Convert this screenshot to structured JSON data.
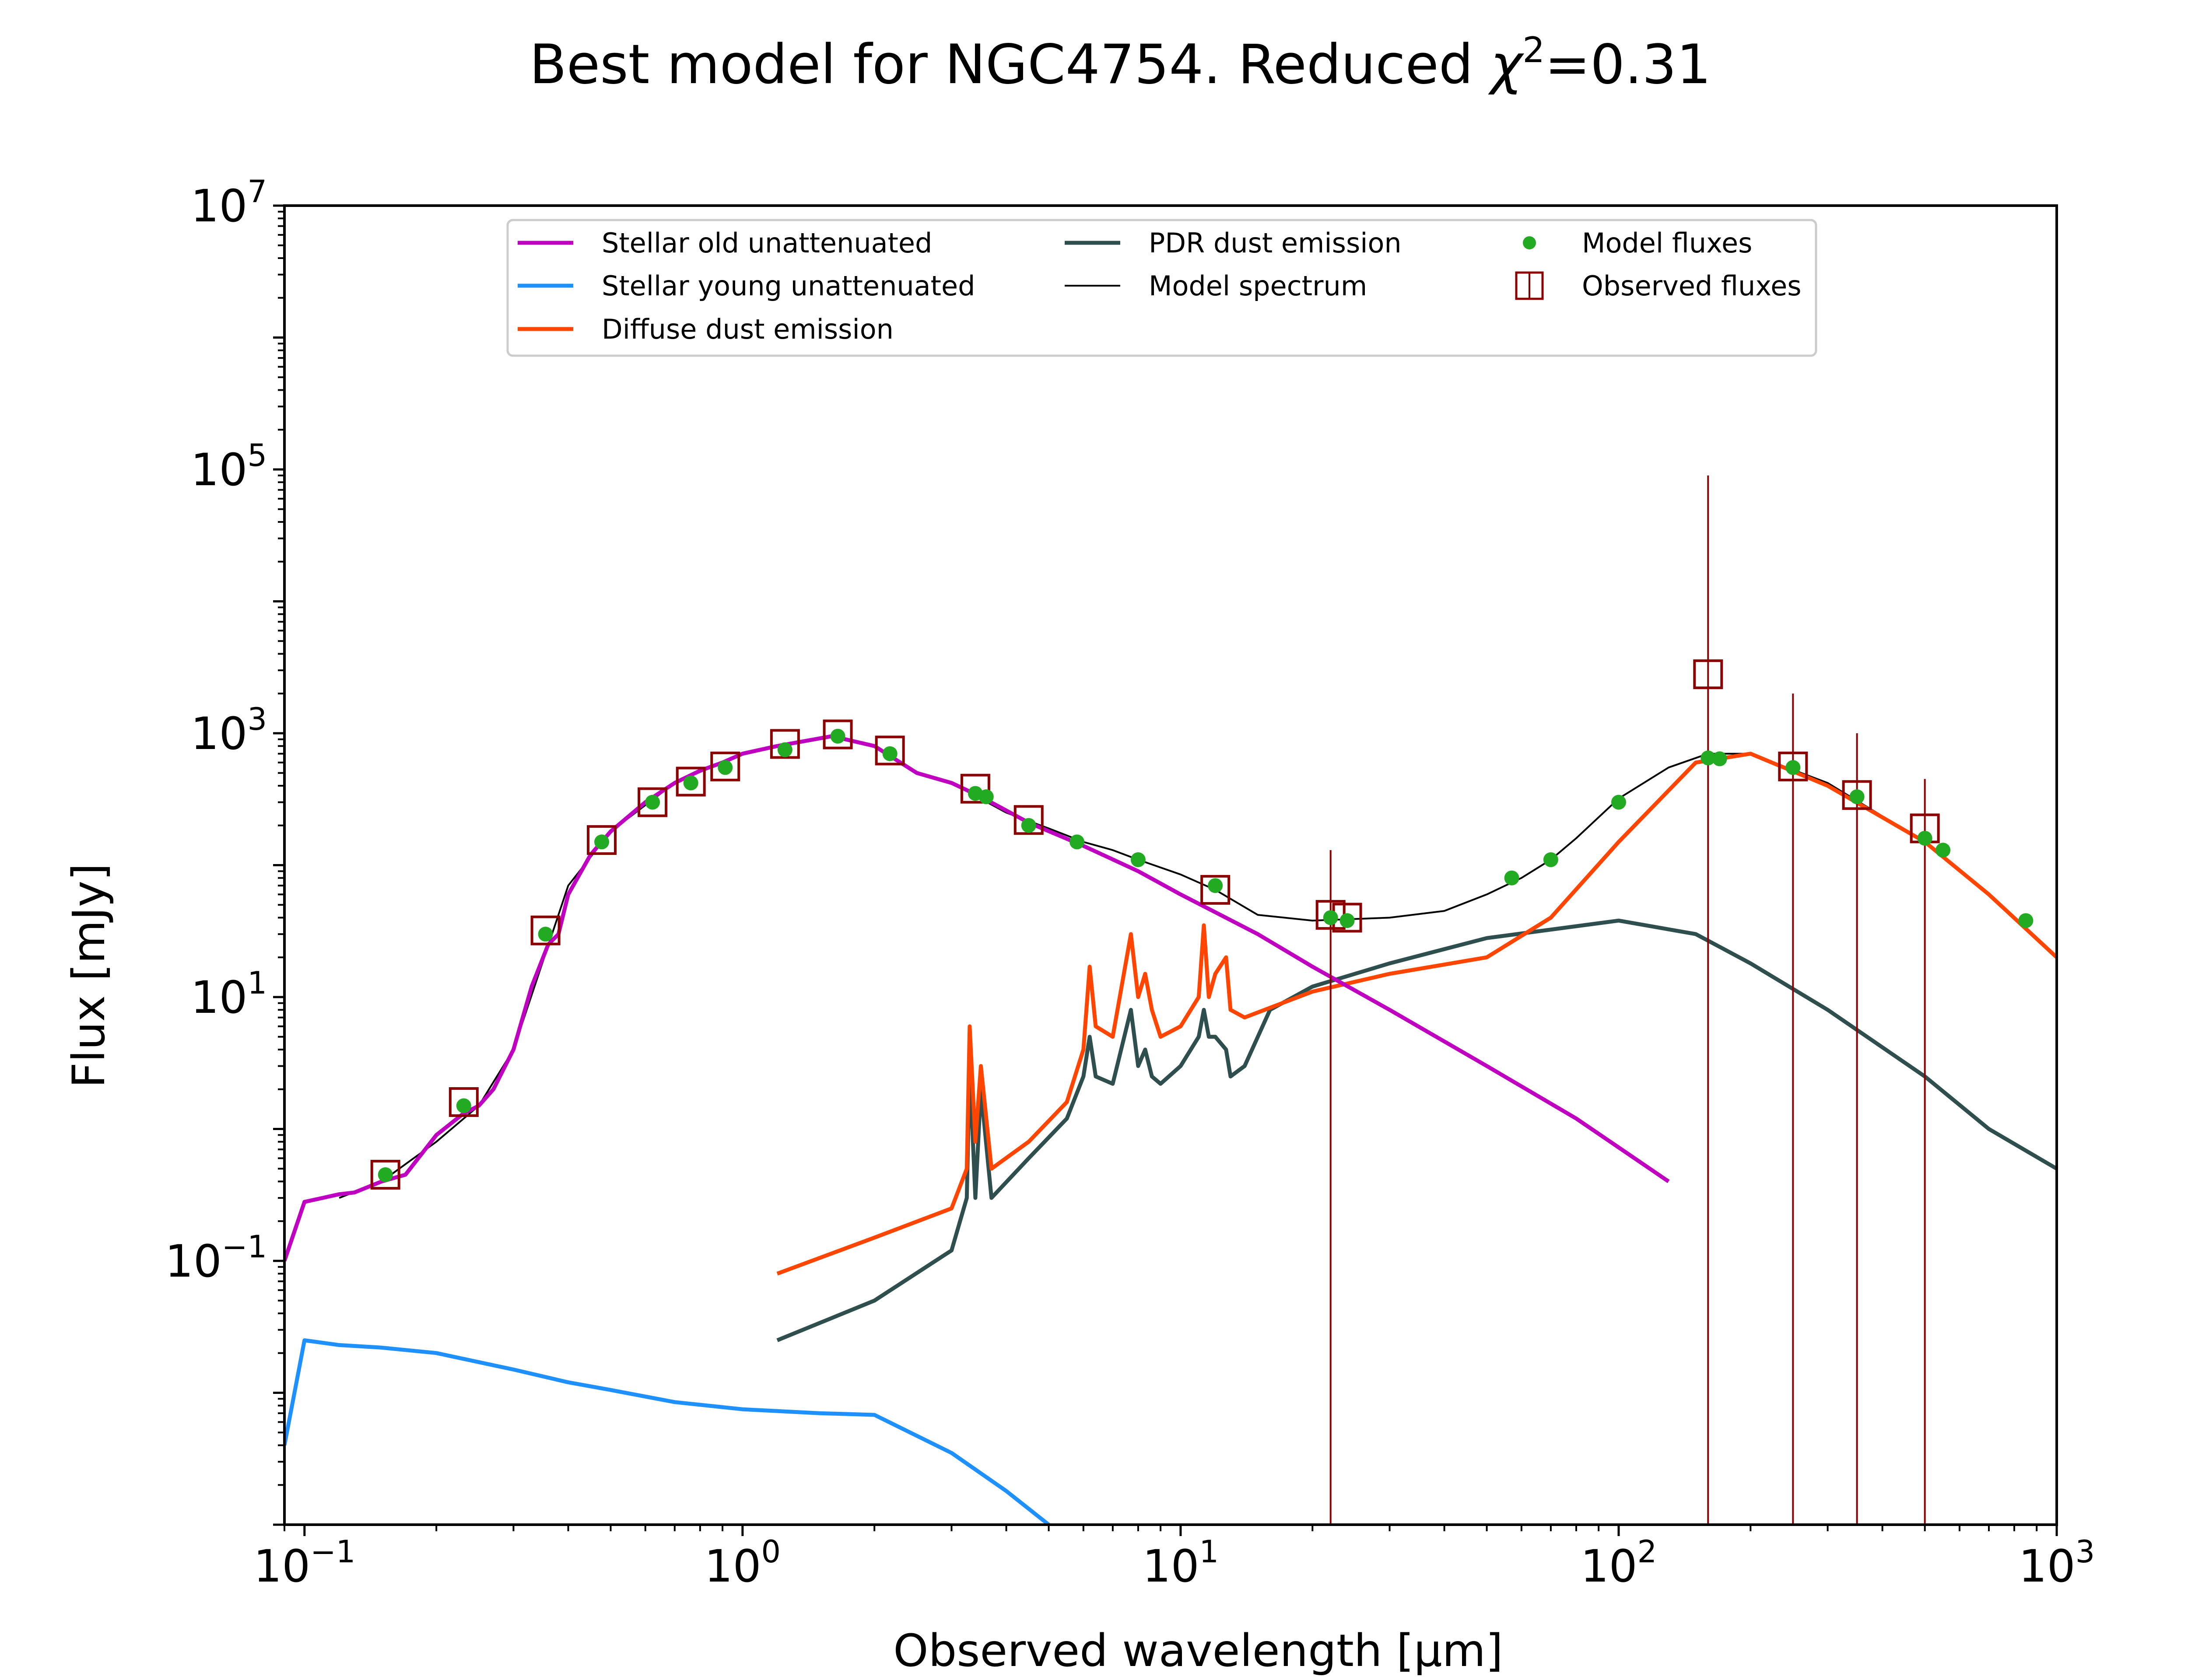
{
  "chart_data": {
    "type": "line",
    "title": "Best model for NGC4754. Reduced χ²=0.31",
    "title_parts": {
      "prefix": "Best model for NGC4754. Reduced ",
      "chi": "χ",
      "sup": "2",
      "suffix": "=0.31"
    },
    "xlabel": "Observed wavelength [μm]",
    "ylabel": "Flux [mJy]",
    "xscale": "log",
    "yscale": "log",
    "xlim": [
      0.09,
      1000
    ],
    "ylim": [
      0.001,
      10000000
    ],
    "xticks": [
      {
        "value": 0.1,
        "base": "10",
        "exp": "−1"
      },
      {
        "value": 1,
        "base": "10",
        "exp": "0"
      },
      {
        "value": 10,
        "base": "10",
        "exp": "1"
      },
      {
        "value": 100,
        "base": "10",
        "exp": "2"
      },
      {
        "value": 1000,
        "base": "10",
        "exp": "3"
      }
    ],
    "yticks": [
      {
        "value": 0.1,
        "base": "10",
        "exp": "−1"
      },
      {
        "value": 10,
        "base": "10",
        "exp": "1"
      },
      {
        "value": 1000,
        "base": "10",
        "exp": "3"
      },
      {
        "value": 100000,
        "base": "10",
        "exp": "5"
      },
      {
        "value": 10000000,
        "base": "10",
        "exp": "7"
      }
    ],
    "legend": {
      "placement": "top-center",
      "entries": [
        {
          "label": "Stellar old unattenuated",
          "kind": "line",
          "color": "#c000c0"
        },
        {
          "label": "Stellar young unattenuated",
          "kind": "line",
          "color": "#1e90ff"
        },
        {
          "label": "Diffuse dust emission",
          "kind": "line",
          "color": "#ff4500"
        },
        {
          "label": "PDR dust emission",
          "kind": "line",
          "color": "#2f4f4f"
        },
        {
          "label": "Model spectrum",
          "kind": "thin-line",
          "color": "#000000"
        },
        {
          "label": "Model fluxes",
          "kind": "dot",
          "color": "#22aa22"
        },
        {
          "label": "Observed fluxes",
          "kind": "square",
          "color": "#8b0000"
        }
      ]
    },
    "series": [
      {
        "name": "Stellar old unattenuated",
        "color": "#c000c0",
        "x": [
          0.09,
          0.1,
          0.11,
          0.12,
          0.13,
          0.15,
          0.17,
          0.2,
          0.23,
          0.25,
          0.27,
          0.3,
          0.33,
          0.36,
          0.38,
          0.4,
          0.45,
          0.5,
          0.6,
          0.7,
          0.8,
          0.9,
          1.0,
          1.2,
          1.6,
          2.0,
          2.5,
          3.0,
          3.5,
          4.5,
          6,
          8,
          10,
          15,
          20,
          30,
          50,
          80,
          130
        ],
        "y": [
          0.1,
          0.28,
          0.3,
          0.32,
          0.33,
          0.4,
          0.45,
          0.9,
          1.3,
          1.5,
          2,
          4,
          12,
          25,
          30,
          60,
          120,
          180,
          300,
          420,
          520,
          600,
          700,
          800,
          950,
          800,
          500,
          420,
          330,
          210,
          140,
          90,
          60,
          30,
          17,
          8,
          3,
          1.2,
          0.4
        ]
      },
      {
        "name": "Stellar young unattenuated",
        "color": "#1e90ff",
        "x": [
          0.09,
          0.1,
          0.12,
          0.15,
          0.2,
          0.3,
          0.4,
          0.5,
          0.7,
          1.0,
          1.5,
          2.0,
          3.0,
          4.0,
          5.0
        ],
        "y": [
          0.004,
          0.025,
          0.023,
          0.022,
          0.02,
          0.015,
          0.012,
          0.0105,
          0.0085,
          0.0075,
          0.007,
          0.0068,
          0.0035,
          0.0018,
          0.001
        ]
      },
      {
        "name": "Diffuse dust emission",
        "color": "#ff4500",
        "x": [
          1.2,
          2,
          3.0,
          3.25,
          3.3,
          3.4,
          3.5,
          3.7,
          4.5,
          5.5,
          6.0,
          6.2,
          6.4,
          7.0,
          7.7,
          8.0,
          8.3,
          8.6,
          9.0,
          10,
          11.0,
          11.3,
          11.6,
          12.0,
          12.7,
          13.0,
          14,
          20,
          30,
          50,
          70,
          100,
          150,
          200,
          300,
          500,
          700,
          1000
        ],
        "y": [
          0.08,
          0.15,
          0.25,
          0.5,
          6,
          0.8,
          3,
          0.5,
          0.8,
          1.6,
          4,
          17,
          6,
          5,
          30,
          10,
          15,
          8,
          5,
          6,
          10,
          35,
          10,
          15,
          20,
          8,
          7,
          11,
          15,
          20,
          40,
          150,
          600,
          700,
          400,
          150,
          60,
          20
        ]
      },
      {
        "name": "PDR dust emission",
        "color": "#2f4f4f",
        "x": [
          1.2,
          2,
          3.0,
          3.25,
          3.3,
          3.4,
          3.5,
          3.7,
          4.5,
          5.5,
          6.0,
          6.2,
          6.4,
          7.0,
          7.7,
          8.0,
          8.3,
          8.6,
          9.0,
          10,
          11.0,
          11.3,
          11.6,
          12.0,
          12.7,
          13.0,
          14,
          16,
          20,
          30,
          50,
          100,
          150,
          200,
          300,
          500,
          700,
          1000
        ],
        "y": [
          0.025,
          0.05,
          0.12,
          0.3,
          3,
          0.3,
          2,
          0.3,
          0.6,
          1.2,
          2.5,
          5,
          2.5,
          2.2,
          8,
          3,
          4,
          2.5,
          2.2,
          3,
          5,
          8,
          5,
          5,
          4,
          2.5,
          3,
          8,
          12,
          18,
          28,
          38,
          30,
          18,
          8,
          2.5,
          1,
          0.5
        ]
      },
      {
        "name": "Model spectrum",
        "color": "#000000",
        "x": [
          0.12,
          0.15,
          0.2,
          0.25,
          0.3,
          0.4,
          0.5,
          0.7,
          1.0,
          1.2,
          1.6,
          2.0,
          2.5,
          3,
          4,
          5,
          6,
          7,
          8,
          10,
          12,
          15,
          20,
          30,
          40,
          50,
          60,
          70,
          80,
          100,
          130,
          160,
          200,
          300,
          500,
          700,
          1000
        ],
        "y": [
          0.3,
          0.4,
          0.8,
          1.5,
          4,
          70,
          180,
          420,
          700,
          800,
          950,
          800,
          500,
          420,
          250,
          190,
          150,
          130,
          110,
          85,
          65,
          42,
          38,
          40,
          45,
          60,
          80,
          110,
          160,
          320,
          550,
          700,
          700,
          420,
          150,
          60,
          20
        ]
      },
      {
        "name": "Model fluxes",
        "color": "#22aa22",
        "x": [
          0.153,
          0.231,
          0.355,
          0.477,
          0.623,
          0.762,
          0.913,
          1.25,
          1.65,
          2.17,
          3.4,
          3.6,
          4.5,
          5.8,
          8.0,
          12,
          22,
          24,
          57,
          70,
          100,
          160,
          170,
          250,
          350,
          500,
          550,
          850
        ],
        "y": [
          0.45,
          1.5,
          30,
          150,
          300,
          420,
          550,
          750,
          950,
          700,
          350,
          330,
          200,
          150,
          110,
          70,
          40,
          38,
          80,
          110,
          300,
          650,
          640,
          550,
          330,
          160,
          130,
          38
        ]
      },
      {
        "name": "Observed fluxes",
        "color": "#8b0000",
        "x": [
          0.153,
          0.231,
          0.355,
          0.477,
          0.623,
          0.762,
          0.913,
          1.25,
          1.65,
          2.17,
          3.4,
          4.5,
          12,
          22,
          24,
          160,
          250,
          350,
          500
        ],
        "y": [
          0.45,
          1.6,
          32,
          155,
          300,
          430,
          560,
          830,
          980,
          740,
          380,
          220,
          65,
          42,
          40,
          2800,
          560,
          340,
          190
        ],
        "errorbars": [
          {
            "x": 22,
            "low": 0.001,
            "high": 130
          },
          {
            "x": 160,
            "low": 0.001,
            "high": 90000
          },
          {
            "x": 250,
            "low": 0.001,
            "high": 2000
          },
          {
            "x": 350,
            "low": 0.001,
            "high": 1000
          },
          {
            "x": 500,
            "low": 0.001,
            "high": 450
          }
        ]
      }
    ]
  }
}
